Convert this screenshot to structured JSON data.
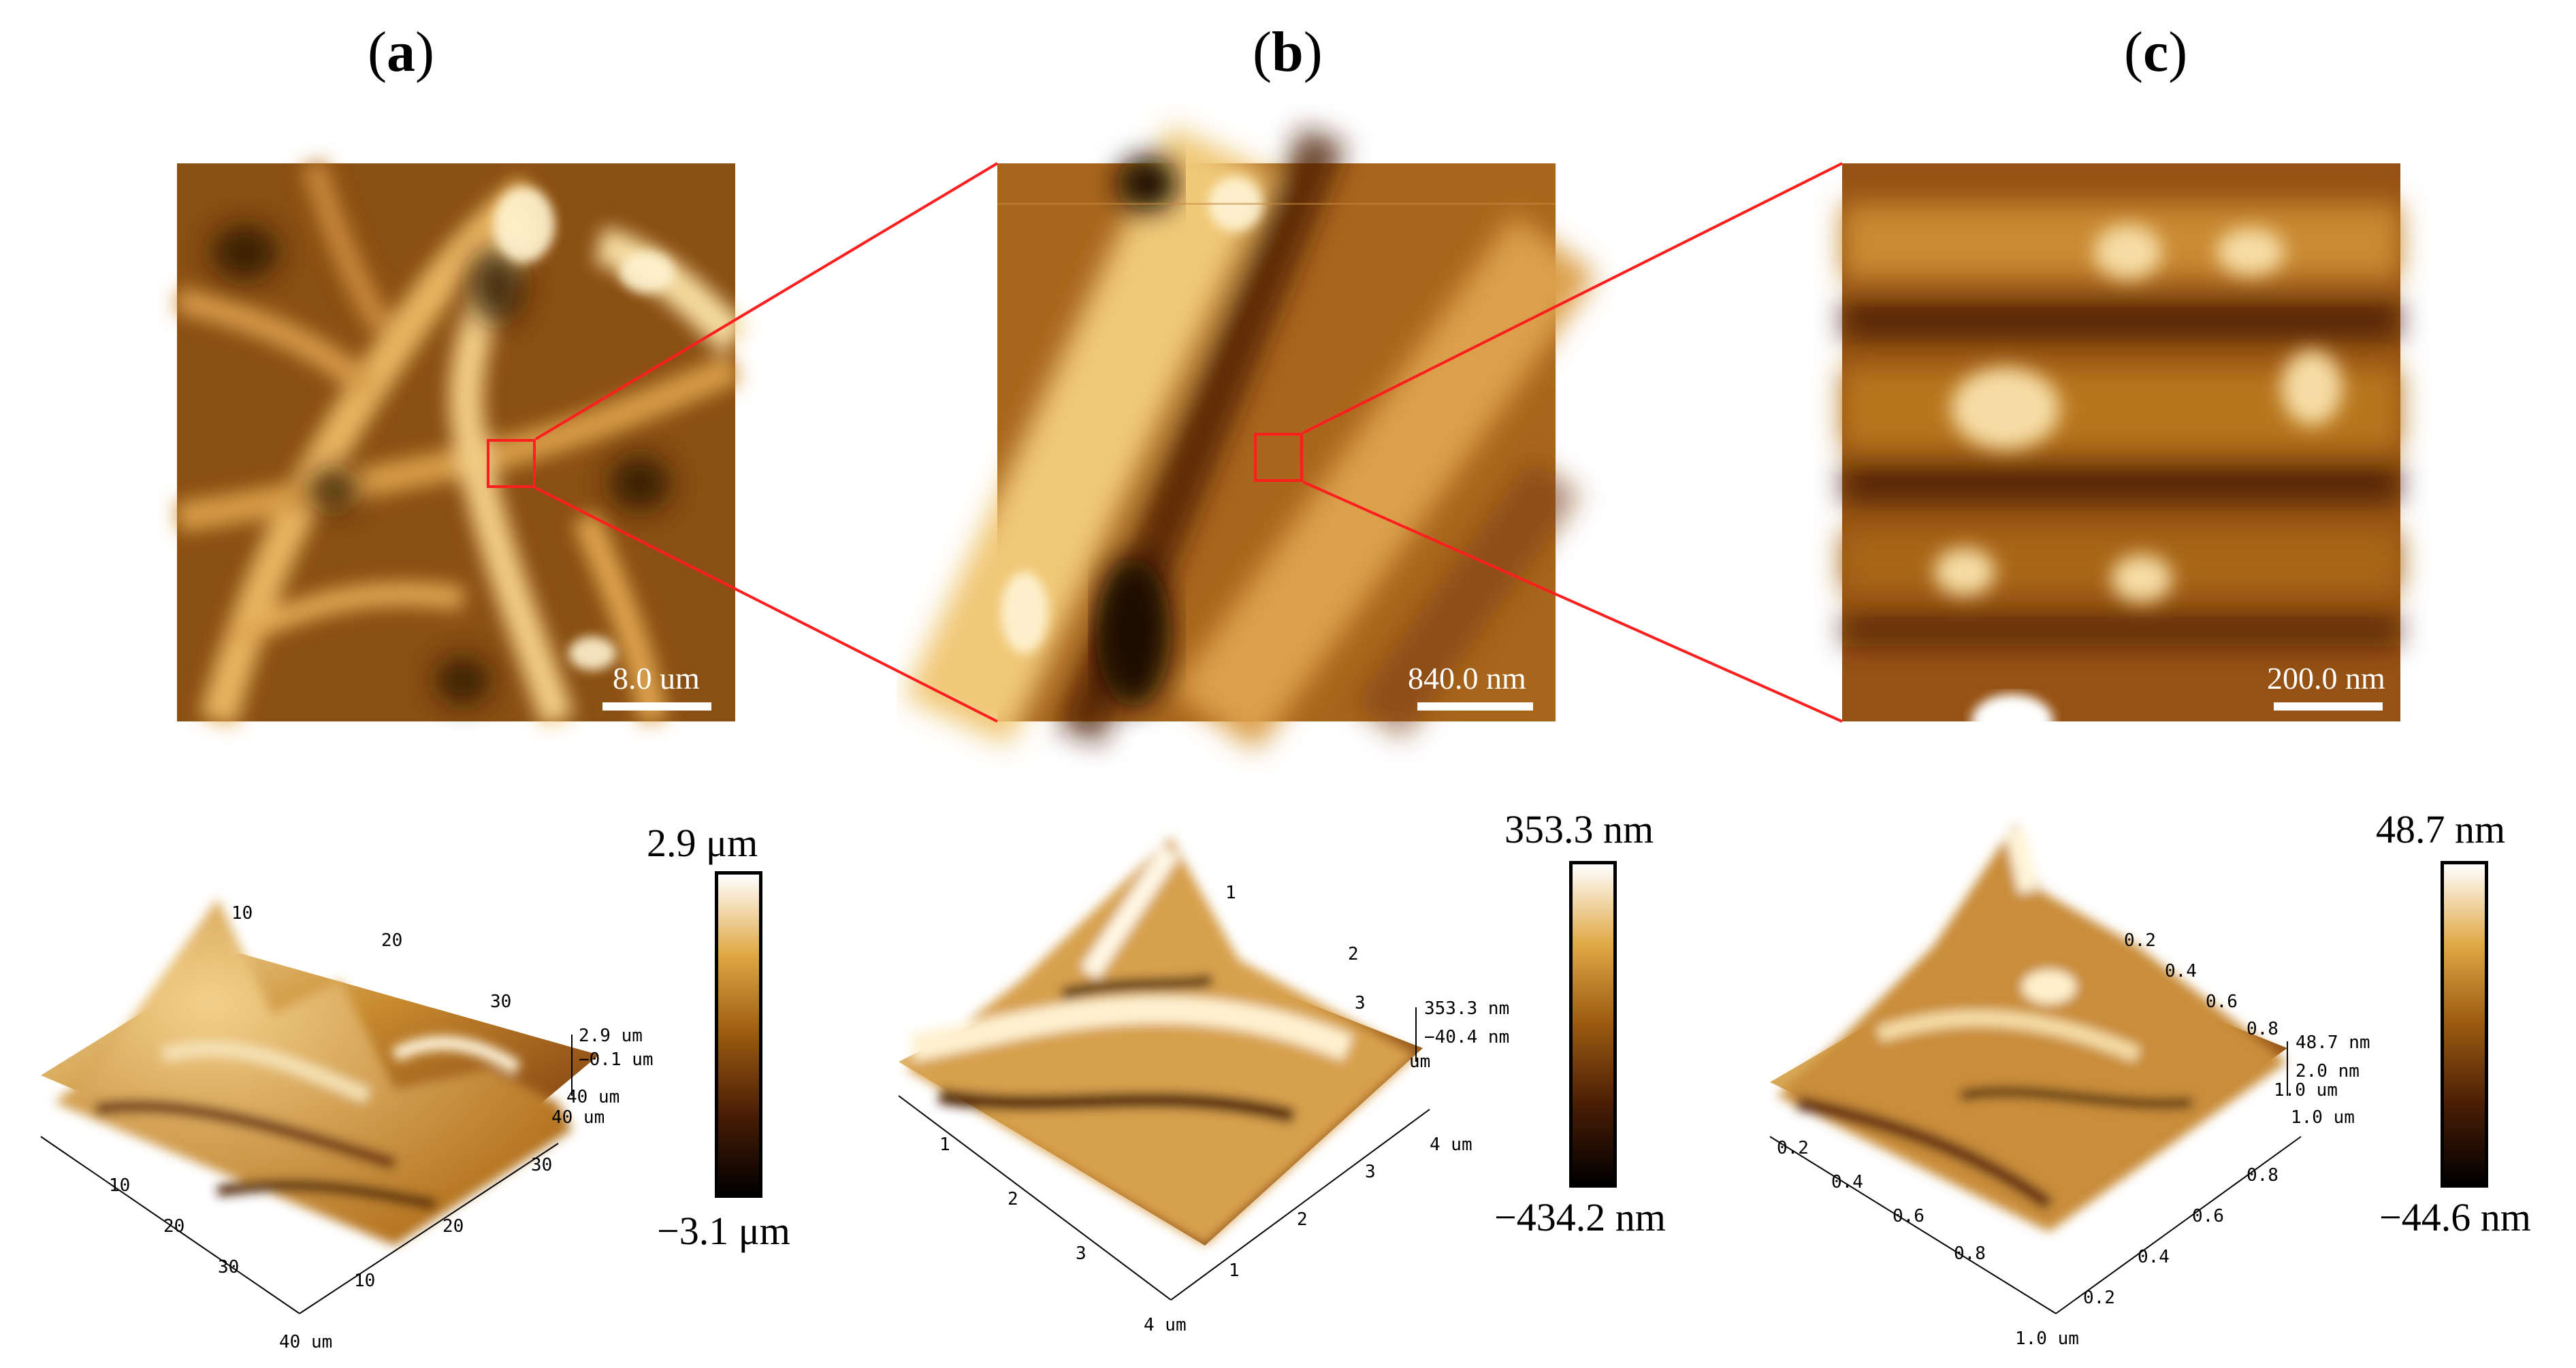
{
  "panels": [
    {
      "id": "a",
      "label": "a",
      "scalebar": "8.0 um",
      "colorbar": {
        "max": "2.9 μm",
        "min": "−3.1 μm"
      },
      "plot3d": {
        "z_labels": [
          "2.9 um",
          "−0.1 um"
        ],
        "right_axis": {
          "ticks": [
            "10",
            "20",
            "30"
          ],
          "unit_labels": [
            "40 um",
            "40 um"
          ]
        },
        "left_axis": {
          "ticks": [
            "10",
            "20",
            "30"
          ],
          "unit_label": "40 um"
        },
        "top_ticks": [
          "10",
          "20",
          "30"
        ]
      }
    },
    {
      "id": "b",
      "label": "b",
      "scalebar": "840.0 nm",
      "colorbar": {
        "max": "353.3 nm",
        "min": "−434.2 nm"
      },
      "plot3d": {
        "z_labels": [
          "353.3 nm",
          "−40.4 nm"
        ],
        "right_axis": {
          "ticks": [
            "1",
            "2",
            "3"
          ],
          "unit_labels": [
            "4 um",
            "um"
          ]
        },
        "left_axis": {
          "ticks": [
            "1",
            "2",
            "3"
          ],
          "unit_label": "4 um"
        },
        "top_ticks": [
          "1",
          "2",
          "3"
        ]
      }
    },
    {
      "id": "c",
      "label": "c",
      "scalebar": "200.0 nm",
      "colorbar": {
        "max": "48.7 nm",
        "min": "−44.6 nm"
      },
      "plot3d": {
        "z_labels": [
          "48.7 nm",
          "2.0 nm"
        ],
        "right_axis": {
          "ticks": [
            "0.2",
            "0.4",
            "0.6",
            "0.8"
          ],
          "unit_labels": [
            "1.0 um",
            "1.0 um"
          ]
        },
        "left_axis": {
          "ticks": [
            "0.2",
            "0.4",
            "0.6",
            "0.8"
          ],
          "unit_label": "1.0 um"
        },
        "top_ticks": [
          "0.2",
          "0.4",
          "0.6",
          "0.8"
        ]
      }
    }
  ],
  "colors": {
    "zoom": "#ff1e1e",
    "afm_dark": "#2a1200",
    "afm_mid": "#9a5a10",
    "afm_light": "#fff0cc"
  }
}
